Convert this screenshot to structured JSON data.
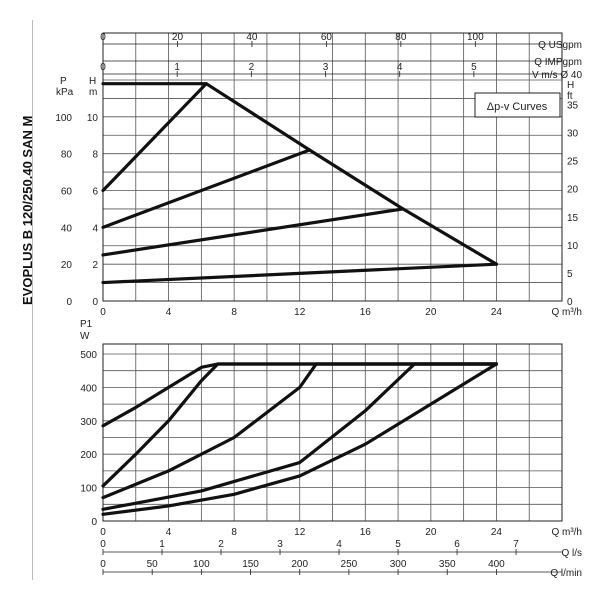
{
  "model_label": "EVOPLUS B 120/250.40 SAN M",
  "legend_box": "Δp-v Curves",
  "chart_data": [
    {
      "type": "line",
      "title": "",
      "x": {
        "label": "Q m³/h",
        "ticks": [
          0,
          4,
          8,
          12,
          16,
          20,
          24
        ],
        "range": [
          0,
          28
        ]
      },
      "y_left_kpa": {
        "label": "P kPa",
        "ticks": [
          0,
          20,
          40,
          60,
          80,
          100
        ],
        "range": [
          0,
          120
        ]
      },
      "y_left_m": {
        "label": "H m",
        "ticks": [
          0,
          2,
          4,
          6,
          8,
          10
        ],
        "range": [
          0,
          12
        ]
      },
      "y_right_ft": {
        "label": "H ft",
        "ticks": [
          0,
          5,
          10,
          15,
          20,
          25,
          30,
          35
        ],
        "range": [
          0,
          39.4
        ]
      },
      "top_axes": [
        {
          "label": "Q USgpm",
          "ticks": [
            0,
            20,
            40,
            60,
            80,
            100
          ],
          "factor": 4.403
        },
        {
          "label": "Q IMPgpm",
          "ticks": [],
          "factor": 3.666
        },
        {
          "label": "V m/s Ø 40",
          "ticks": [
            0,
            1,
            2,
            3,
            4,
            5
          ],
          "factor": 0.221
        }
      ],
      "grid": true,
      "series": [
        {
          "x": [
            0,
            6.3
          ],
          "y": [
            6.0,
            11.8
          ]
        },
        {
          "x": [
            0,
            12.6
          ],
          "y": [
            4.0,
            8.2
          ]
        },
        {
          "x": [
            0,
            18.3
          ],
          "y": [
            2.5,
            5.0
          ]
        },
        {
          "x": [
            0,
            24
          ],
          "y": [
            1.0,
            2.0
          ]
        },
        {
          "x": [
            0,
            6.3,
            12.6,
            18.3,
            24
          ],
          "y": [
            11.8,
            11.8,
            8.2,
            5.0,
            2.0
          ]
        }
      ]
    },
    {
      "type": "line",
      "title": "",
      "x": {
        "label": "Q m³/h",
        "ticks": [
          0,
          4,
          8,
          12,
          16,
          20,
          24
        ],
        "range": [
          0,
          28
        ]
      },
      "y": {
        "label": "P1 W",
        "ticks": [
          0,
          100,
          200,
          300,
          400,
          500
        ],
        "range": [
          0,
          500
        ]
      },
      "bottom_axes": [
        {
          "label": "Q l/s",
          "ticks": [
            0,
            1,
            2,
            3,
            4,
            5,
            6,
            7
          ],
          "factor": 0.2778
        },
        {
          "label": "Q l/min",
          "ticks": [
            0,
            50,
            100,
            150,
            200,
            250,
            300,
            350,
            400
          ],
          "factor": 16.667
        }
      ],
      "grid": true,
      "series": [
        {
          "x": [
            0,
            2,
            4,
            6,
            7,
            24
          ],
          "y": [
            285,
            340,
            400,
            460,
            470,
            470
          ]
        },
        {
          "x": [
            0,
            2,
            4,
            6,
            7,
            24
          ],
          "y": [
            105,
            200,
            300,
            420,
            470,
            470
          ]
        },
        {
          "x": [
            0,
            4,
            8,
            12,
            13,
            24
          ],
          "y": [
            70,
            150,
            250,
            400,
            470,
            470
          ]
        },
        {
          "x": [
            0,
            6,
            12,
            16,
            19,
            24
          ],
          "y": [
            35,
            90,
            175,
            330,
            470,
            470
          ]
        },
        {
          "x": [
            0,
            4,
            8,
            12,
            16,
            20,
            24
          ],
          "y": [
            20,
            45,
            80,
            135,
            230,
            350,
            470
          ]
        }
      ]
    }
  ]
}
